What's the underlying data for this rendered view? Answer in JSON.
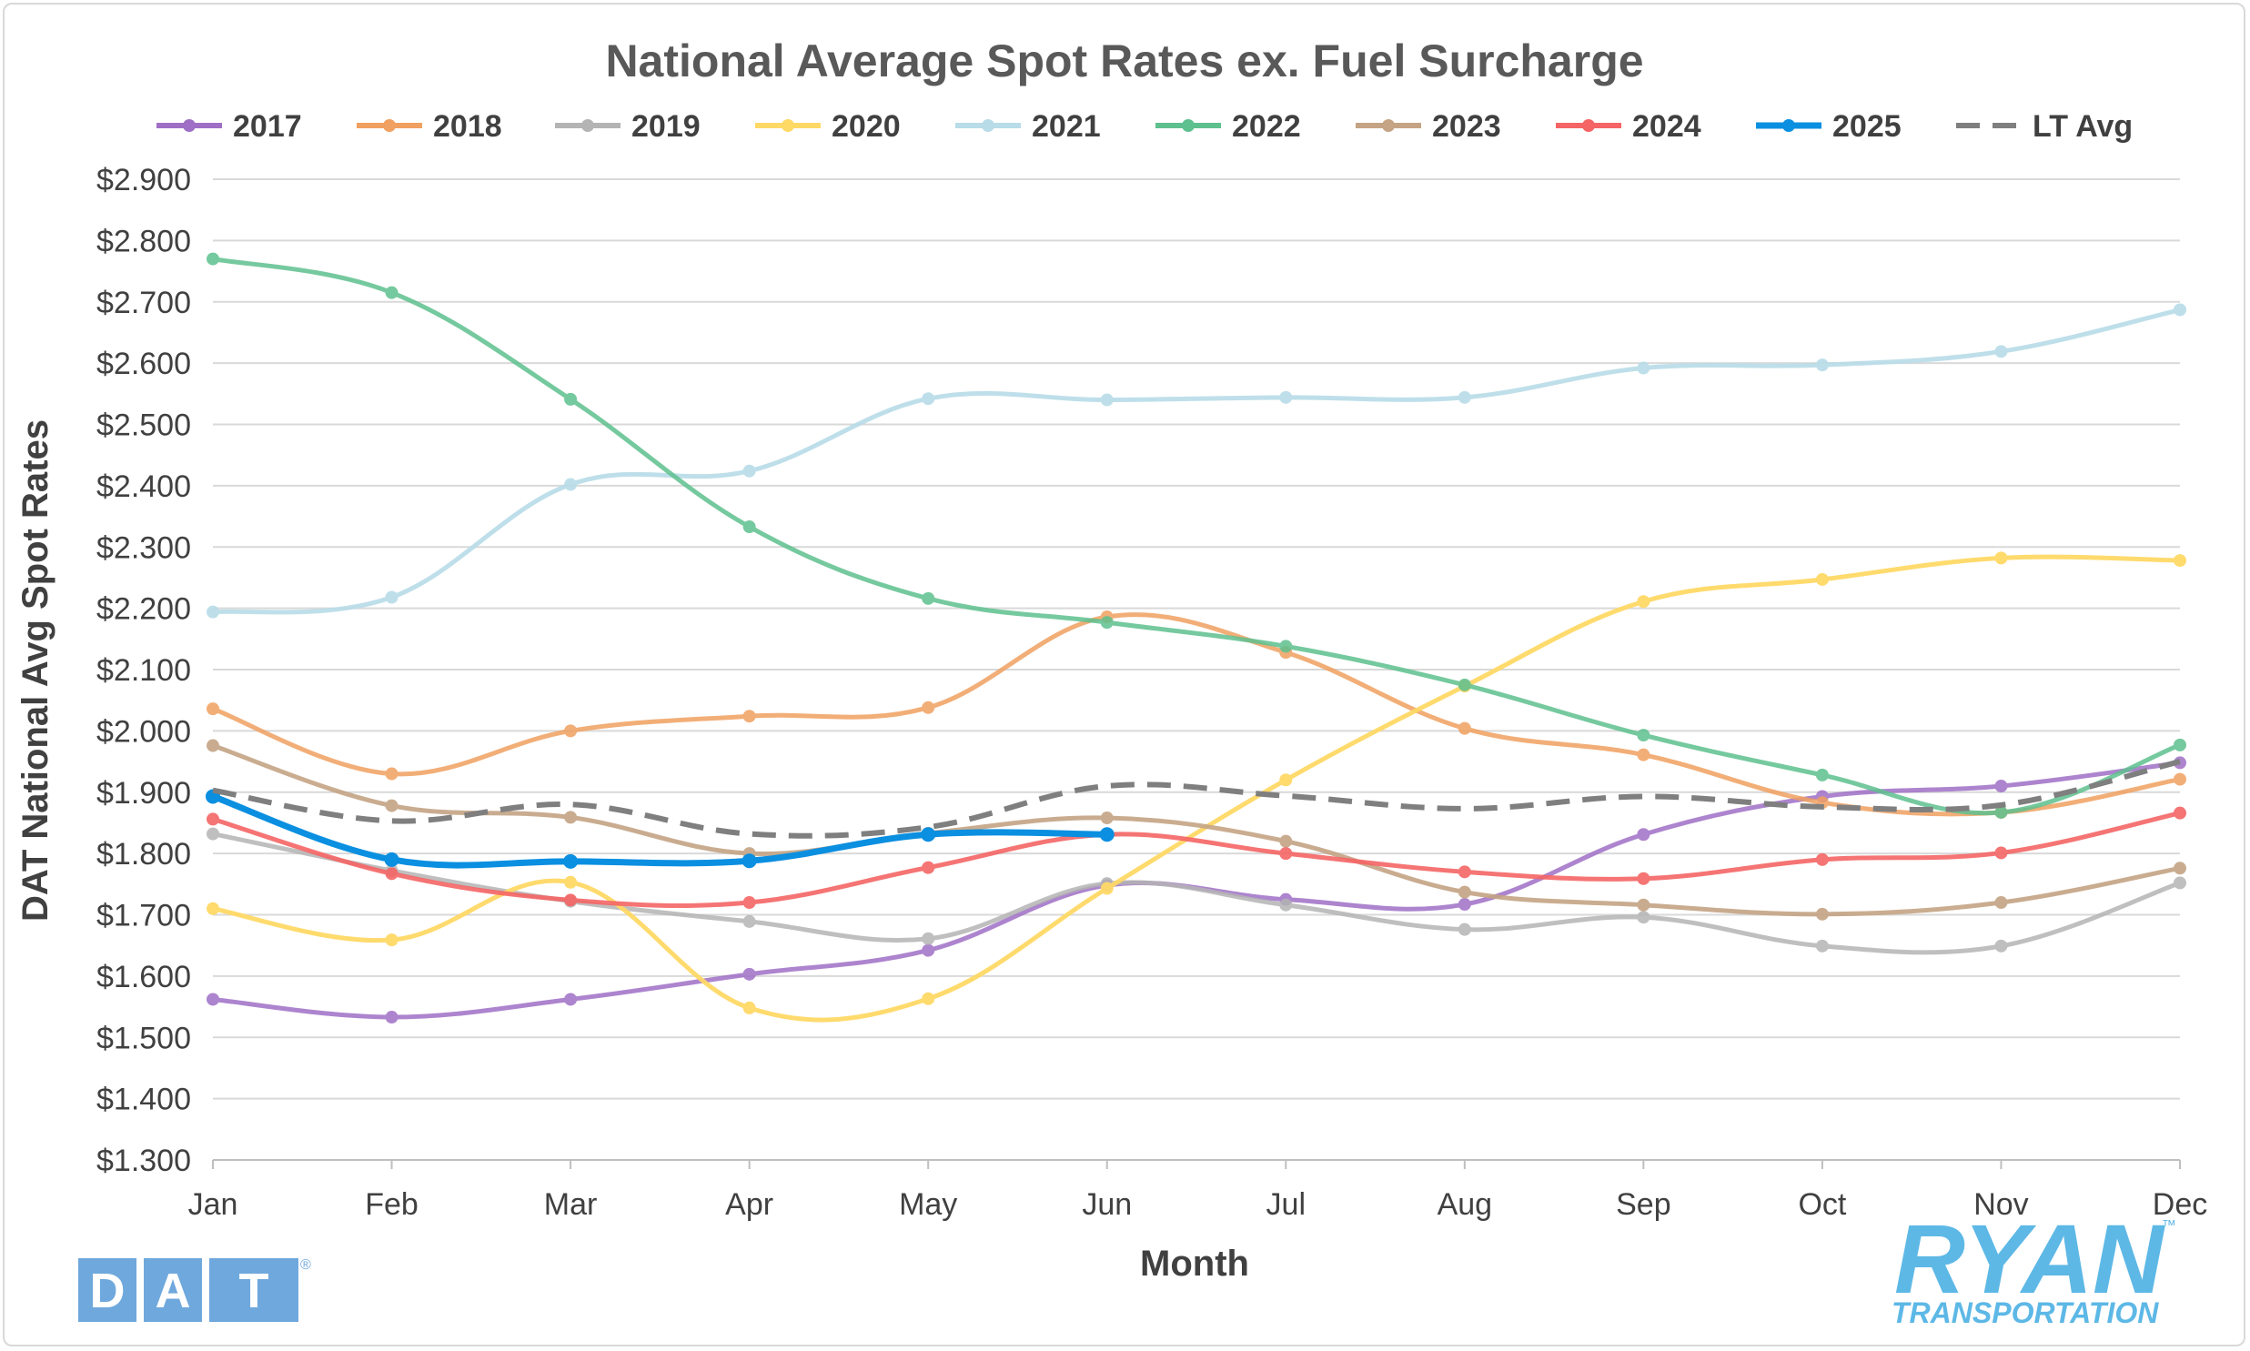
{
  "chart_data": {
    "type": "line",
    "title": "National Average Spot Rates ex. Fuel Surcharge",
    "xlabel": "Month",
    "ylabel": "DAT National Avg Spot Rates",
    "categories": [
      "Jan",
      "Feb",
      "Mar",
      "Apr",
      "May",
      "Jun",
      "Jul",
      "Aug",
      "Sep",
      "Oct",
      "Nov",
      "Dec"
    ],
    "ylim": [
      1.3,
      2.9
    ],
    "ytick_step": 0.1,
    "ytick_labels": [
      "$1.300",
      "$1.400",
      "$1.500",
      "$1.600",
      "$1.700",
      "$1.800",
      "$1.900",
      "$2.000",
      "$2.100",
      "$2.200",
      "$2.300",
      "$2.400",
      "$2.500",
      "$2.600",
      "$2.700",
      "$2.800",
      "$2.900"
    ],
    "grid": true,
    "legend_position": "top",
    "series": [
      {
        "name": "2017",
        "color": "#9f6fc6",
        "style": "solid",
        "opacity": 0.85,
        "values": [
          1.562,
          1.533,
          1.562,
          1.603,
          1.642,
          1.748,
          1.725,
          1.717,
          1.831,
          1.893,
          1.91,
          1.948
        ]
      },
      {
        "name": "2018",
        "color": "#f0a060",
        "style": "solid",
        "opacity": 0.85,
        "values": [
          2.036,
          1.93,
          2.0,
          2.024,
          2.038,
          2.186,
          2.128,
          2.004,
          1.961,
          1.883,
          1.867,
          1.921
        ]
      },
      {
        "name": "2019",
        "color": "#b4b4b4",
        "style": "solid",
        "opacity": 0.85,
        "values": [
          1.832,
          1.772,
          1.722,
          1.689,
          1.661,
          1.751,
          1.716,
          1.676,
          1.696,
          1.649,
          1.649,
          1.752
        ]
      },
      {
        "name": "2020",
        "color": "#ffd966",
        "style": "solid",
        "opacity": 0.95,
        "values": [
          1.71,
          1.659,
          1.753,
          1.548,
          1.563,
          1.743,
          1.92,
          2.073,
          2.211,
          2.247,
          2.282,
          2.278
        ]
      },
      {
        "name": "2021",
        "color": "#b8dce8",
        "style": "solid",
        "opacity": 0.9,
        "values": [
          2.194,
          2.218,
          2.402,
          2.424,
          2.542,
          2.54,
          2.544,
          2.544,
          2.592,
          2.597,
          2.619,
          2.687
        ]
      },
      {
        "name": "2022",
        "color": "#5ec08e",
        "style": "solid",
        "opacity": 0.85,
        "values": [
          2.77,
          2.715,
          2.541,
          2.333,
          2.216,
          2.177,
          2.138,
          2.075,
          1.993,
          1.928,
          1.867,
          1.977
        ]
      },
      {
        "name": "2023",
        "color": "#c4a484",
        "style": "solid",
        "opacity": 0.9,
        "values": [
          1.976,
          1.878,
          1.859,
          1.8,
          1.833,
          1.858,
          1.82,
          1.737,
          1.716,
          1.701,
          1.72,
          1.776
        ]
      },
      {
        "name": "2024",
        "color": "#f56565",
        "style": "solid",
        "opacity": 0.9,
        "values": [
          1.856,
          1.767,
          1.724,
          1.72,
          1.777,
          1.831,
          1.8,
          1.77,
          1.759,
          1.79,
          1.801,
          1.866
        ]
      },
      {
        "name": "2025",
        "color": "#0b8fe0",
        "style": "solid",
        "opacity": 1.0,
        "emphasis": true,
        "values": [
          1.893,
          1.79,
          1.787,
          1.788,
          1.831,
          1.831,
          null,
          null,
          null,
          null,
          null,
          null
        ]
      },
      {
        "name": "LT Avg",
        "color": "#7f7f7f",
        "style": "dashed",
        "opacity": 1.0,
        "markers": false,
        "values": [
          1.903,
          1.853,
          1.88,
          1.832,
          1.843,
          1.91,
          1.894,
          1.873,
          1.893,
          1.876,
          1.879,
          1.95
        ]
      }
    ]
  },
  "logos": {
    "dat": {
      "letters": [
        "D",
        "A",
        "T"
      ],
      "tm": "®",
      "color": "#6fa8dc"
    },
    "ryan": {
      "word": "RYAN",
      "tm": "™",
      "sub": "TRANSPORTATION",
      "color": "#5db8e6"
    }
  }
}
